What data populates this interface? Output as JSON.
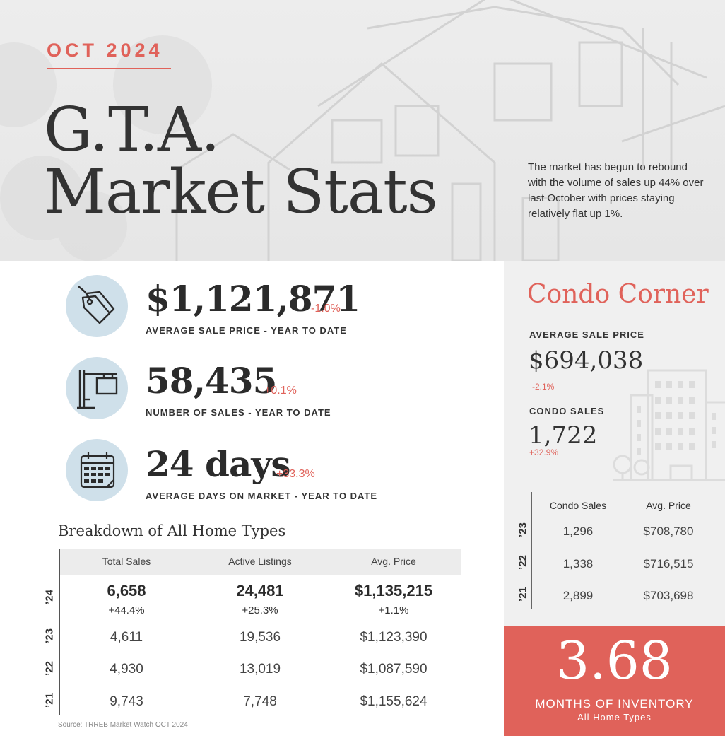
{
  "header": {
    "eyebrow": "OCT 2024",
    "title_line1": "G.T.A.",
    "title_line2": "Market Stats",
    "intro": "The market has begun to rebound with the volume of sales up 44% over last October with prices staying relatively flat up 1%."
  },
  "stats": [
    {
      "icon": "price-tag-icon",
      "value": "$1,121,871",
      "change": "-1.0%",
      "label": "AVERAGE SALE PRICE - YEAR TO DATE"
    },
    {
      "icon": "for-sale-sign-icon",
      "value": "58,435",
      "change": "+0.1%",
      "label": "NUMBER OF SALES - YEAR TO DATE"
    },
    {
      "icon": "calendar-icon",
      "value": "24 days",
      "change": "+33.3%",
      "label": "AVERAGE DAYS ON MARKET - YEAR TO DATE"
    }
  ],
  "breakdown": {
    "title": "Breakdown of All Home Types",
    "columns": [
      "Total Sales",
      "Active Listings",
      "Avg. Price"
    ],
    "rows": [
      {
        "year": "’24",
        "values": [
          "6,658",
          "24,481",
          "$1,135,215"
        ],
        "changes": [
          "+44.4%",
          "+25.3%",
          "+1.1%"
        ]
      },
      {
        "year": "’23",
        "values": [
          "4,611",
          "19,536",
          "$1,123,390"
        ]
      },
      {
        "year": "’22",
        "values": [
          "4,930",
          "13,019",
          "$1,087,590"
        ]
      },
      {
        "year": "’21",
        "values": [
          "9,743",
          "7,748",
          "$1,155,624"
        ]
      }
    ],
    "source": "Source: TRREB Market Watch OCT 2024"
  },
  "condo": {
    "title": "Condo Corner",
    "avg_price_label": "AVERAGE SALE PRICE",
    "avg_price_value": "$694,038",
    "avg_price_change": "-2.1%",
    "sales_label": "CONDO SALES",
    "sales_value": "1,722",
    "sales_change": "+32.9%",
    "columns": [
      "Condo Sales",
      "Avg. Price"
    ],
    "rows": [
      {
        "year": "’23",
        "values": [
          "1,296",
          "$708,780"
        ]
      },
      {
        "year": "’22",
        "values": [
          "1,338",
          "$716,515"
        ]
      },
      {
        "year": "’21",
        "values": [
          "2,899",
          "$703,698"
        ]
      }
    ]
  },
  "inventory": {
    "value": "3.68",
    "label": "MONTHS OF INVENTORY",
    "sublabel": "All Home Types"
  },
  "colors": {
    "accent": "#e0625a",
    "icon_bg": "#cfe0ea",
    "text": "#2b2b2b",
    "panel": "#f0f0f0"
  }
}
